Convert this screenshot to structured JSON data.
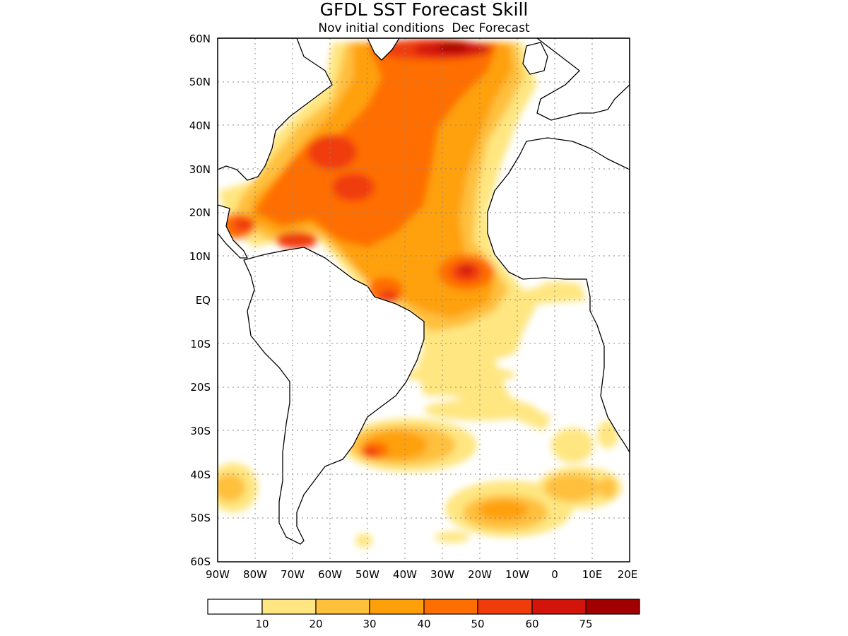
{
  "title": "GFDL SST Forecast Skill",
  "subtitle": "Nov initial conditions  Dec Forecast",
  "map": {
    "lon_range": [
      -90,
      20
    ],
    "lat_range": [
      -60,
      60
    ],
    "grid": "dotted",
    "lat_ticks": [
      "60N",
      "50N",
      "40N",
      "30N",
      "20N",
      "10N",
      "EQ",
      "10S",
      "20S",
      "30S",
      "40S",
      "50S",
      "60S"
    ],
    "lon_ticks": [
      "90W",
      "80W",
      "70W",
      "60W",
      "50W",
      "40W",
      "30W",
      "20W",
      "10W",
      "0",
      "10E",
      "20E"
    ]
  },
  "colorbar": {
    "colors": [
      "#ffffff",
      "#ffe680",
      "#ffc03c",
      "#ffa00a",
      "#ff6e00",
      "#f03c0a",
      "#d2140a",
      "#a00000"
    ],
    "labels": [
      "10",
      "20",
      "30",
      "40",
      "50",
      "60",
      "75"
    ]
  }
}
